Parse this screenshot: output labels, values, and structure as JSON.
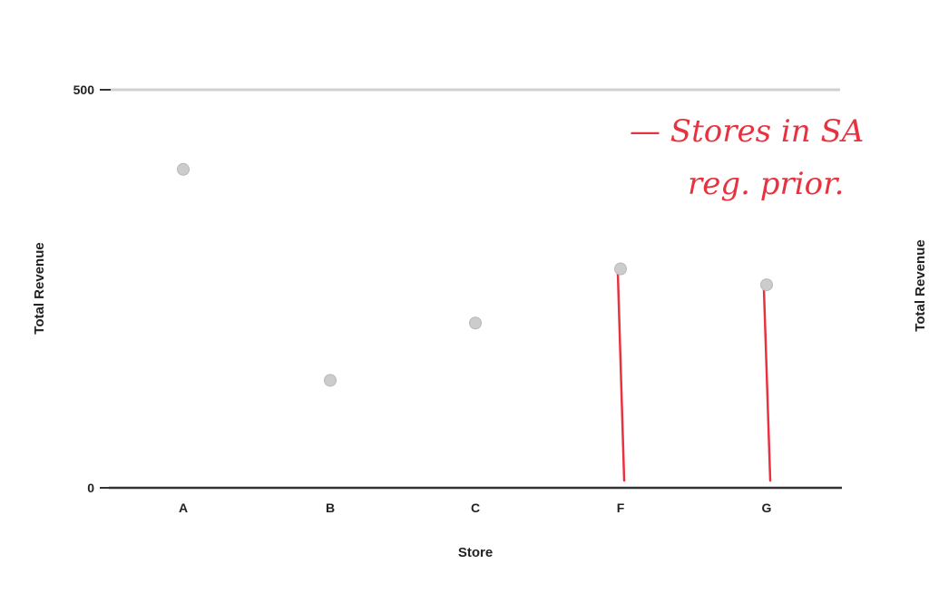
{
  "chart_data": {
    "type": "scatter",
    "categories": [
      "A",
      "B",
      "C",
      "F",
      "G"
    ],
    "values": [
      400,
      135,
      207,
      275,
      255
    ],
    "xlabel": "Store",
    "ylabel": "Total Revenue",
    "ylim": [
      0,
      500
    ],
    "yticks": [
      0,
      500
    ],
    "grid": false,
    "legend": "none",
    "marker_color": "#cccccc",
    "secondary_ylabel": "Total Revenue",
    "annotations": {
      "color": "#e8323f",
      "note_line1": "— Stores in SA",
      "note_line2": "reg. prior.",
      "highlighted_categories": [
        "F",
        "G"
      ]
    }
  }
}
